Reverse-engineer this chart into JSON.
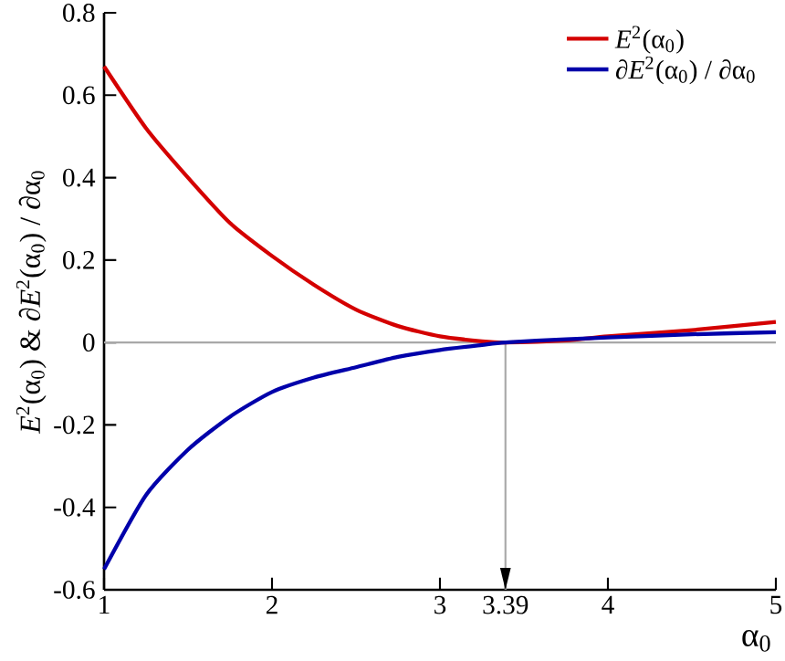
{
  "chart_data": {
    "type": "line",
    "xlabel": "α$_{0}$",
    "ylabel": "*E*$^{2}$(α$_{0}$)   &   ∂*E*$^{2}$(α$_{0}$) / ∂α$_{0}$",
    "x": [
      1,
      1.25,
      1.5,
      1.75,
      2,
      2.25,
      2.5,
      2.75,
      3,
      3.25,
      3.39,
      3.75,
      4,
      4.5,
      5
    ],
    "series": [
      {
        "name": "*E*$^{2}$(α$_{0}$)",
        "color": "#d40000",
        "values": [
          0.67,
          0.52,
          0.4,
          0.29,
          0.21,
          0.14,
          0.08,
          0.04,
          0.015,
          0.003,
          0,
          0.005,
          0.015,
          0.03,
          0.05
        ]
      },
      {
        "name": "∂*E*$^{2}$(α$_{0}$) / ∂α$_{0}$",
        "color": "#0000aa",
        "values": [
          -0.55,
          -0.37,
          -0.26,
          -0.18,
          -0.12,
          -0.085,
          -0.06,
          -0.035,
          -0.018,
          -0.006,
          0,
          0.008,
          0.012,
          0.02,
          0.025
        ]
      }
    ],
    "xlim": [
      1,
      5
    ],
    "ylim": [
      -0.6,
      0.8
    ],
    "xticks": [
      1,
      2,
      3,
      3.39,
      4,
      5
    ],
    "yticks": [
      -0.6,
      -0.4,
      -0.2,
      0,
      0.2,
      0.4,
      0.6,
      0.8
    ],
    "ref_lines": [
      {
        "axis": "y",
        "value": 0,
        "color": "#a8a8a8"
      },
      {
        "axis": "x",
        "value": 3.39,
        "color": "#a8a8a8"
      }
    ],
    "grid": false,
    "legend": "top right",
    "marker": "none",
    "line_style": "solid"
  }
}
